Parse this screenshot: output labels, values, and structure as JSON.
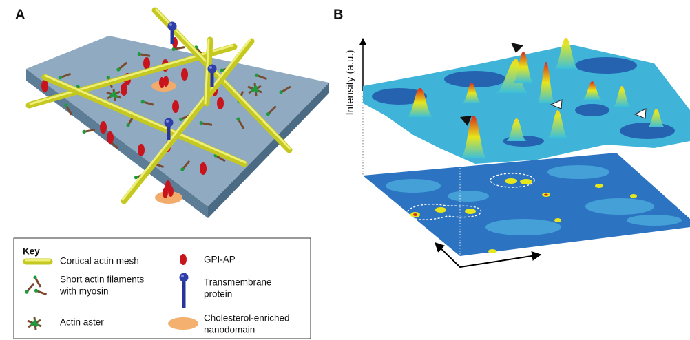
{
  "panels": {
    "a": {
      "label": "A"
    },
    "b": {
      "label": "B",
      "y_axis_label": "Intensity (a.u.)"
    }
  },
  "key": {
    "title": "Key",
    "items": [
      {
        "lines": [
          "Cortical actin mesh"
        ]
      },
      {
        "lines": [
          "Short actin filaments",
          "with myosin"
        ]
      },
      {
        "lines": [
          "Actin aster"
        ]
      },
      {
        "lines": [
          "GPI-AP"
        ]
      },
      {
        "lines": [
          "Transmembrane",
          "protein"
        ]
      },
      {
        "lines": [
          "Cholesterol-enriched",
          "nanodomain"
        ]
      }
    ]
  }
}
